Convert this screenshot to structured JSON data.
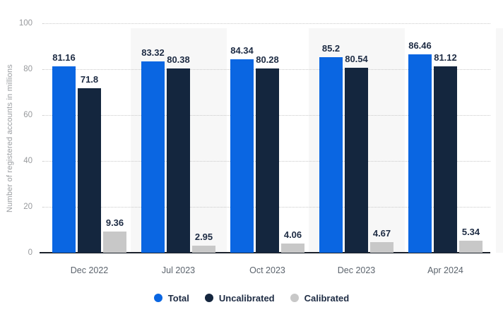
{
  "chart_data": {
    "type": "bar",
    "variant": "grouped-vertical",
    "title": "",
    "y_axis_title": "Number of registered accounts in millions",
    "x_axis_title": "",
    "ylim": [
      0,
      100
    ],
    "y_ticks": [
      0,
      20,
      40,
      60,
      80,
      100
    ],
    "grid": "horizontal-dotted",
    "legend_position": "bottom-center",
    "categories": [
      "Dec 2022",
      "Jul 2023",
      "Oct 2023",
      "Dec 2023",
      "Apr 2024"
    ],
    "series": [
      {
        "name": "Total",
        "color": "#0a66e2",
        "values": [
          81.16,
          83.32,
          84.34,
          85.2,
          86.46
        ]
      },
      {
        "name": "Uncalibrated",
        "color": "#14263e",
        "values": [
          71.8,
          80.38,
          80.28,
          80.54,
          81.12
        ]
      },
      {
        "name": "Calibrated",
        "color": "#c8c8c8",
        "values": [
          9.36,
          2.95,
          4.06,
          4.67,
          5.34
        ]
      }
    ],
    "value_labels_shown": true,
    "shaded_categories": [
      "Jul 2023",
      "Dec 2023"
    ],
    "colors": {
      "band": "#f7f7f7",
      "gridline": "#c9c9c9",
      "axis_line": "#1b212b",
      "tick_label": "#97999c",
      "category_label": "#5c646d",
      "value_label": "#1d2b43"
    }
  }
}
